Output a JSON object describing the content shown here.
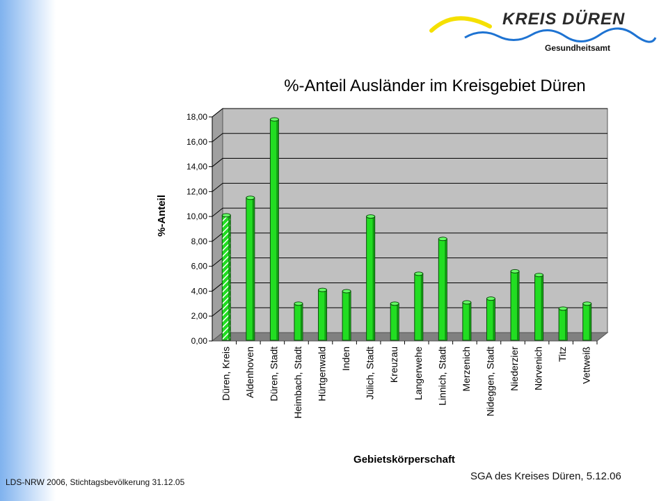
{
  "header": {
    "logo_title": "KREIS DÜREN",
    "logo_subtitle": "Gesundheitsamt",
    "colors": {
      "arc_yellow": "#f5e000",
      "wave_blue": "#1e73d2"
    }
  },
  "footer": {
    "source": "LDS-NRW 2006, Stichtagsbevölkerung 31.12.05",
    "credit": "SGA des Kreises Düren, 5.12.06"
  },
  "chart_data": {
    "type": "bar",
    "title": "%-Anteil Ausländer im Kreisgebiet Düren",
    "xlabel": "Gebietskörperschaft",
    "ylabel": "%-Anteil",
    "ylim": [
      0,
      18
    ],
    "ytick_step": 2,
    "ytick_labels": [
      "0,00",
      "2,00",
      "4,00",
      "6,00",
      "8,00",
      "10,00",
      "12,00",
      "14,00",
      "16,00",
      "18,00"
    ],
    "grid": true,
    "categories": [
      "Düren, Kreis",
      "Aldenhoven",
      "Düren, Stadt",
      "Heimbach, Stadt",
      "Hürtgenwald",
      "Inden",
      "Jülich, Stadt",
      "Kreuzau",
      "Langerwehe",
      "Linnich, Stadt",
      "Merzenich",
      "Nideggen, Stadt",
      "Niederzier",
      "Nörvenich",
      "Titz",
      "Vettweiß"
    ],
    "values": [
      10.1,
      11.5,
      17.8,
      3.0,
      4.1,
      4.0,
      10.0,
      3.0,
      5.4,
      8.2,
      3.1,
      3.4,
      5.6,
      5.3,
      2.6,
      3.0
    ],
    "highlight_index": 0,
    "colors": {
      "bar": "#22dd22",
      "plot_wall": "#c0c0c0",
      "plot_floor": "#808080"
    }
  }
}
